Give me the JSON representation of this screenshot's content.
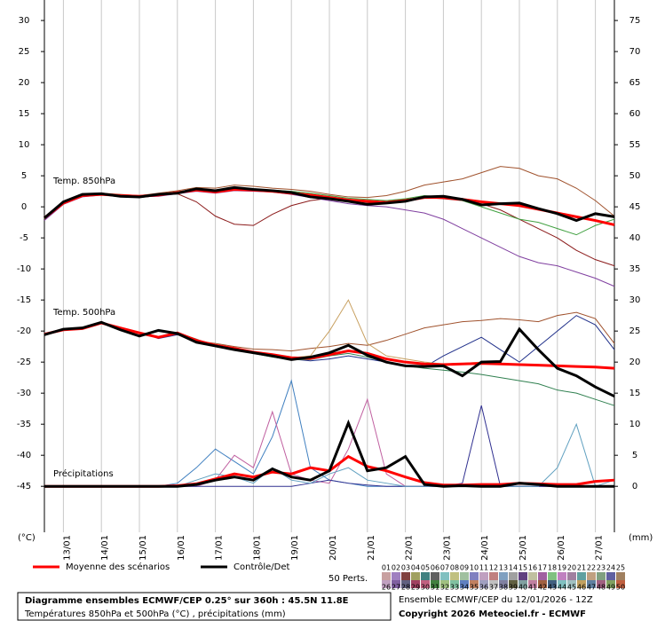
{
  "chart_data": {
    "type": "line",
    "annotations": [
      "Temp. 850hPa",
      "Temp. 500hPa",
      "Précipitations"
    ],
    "y_label": "(°C)",
    "y2_label": "(mm)",
    "x": [
      0,
      12,
      24,
      36,
      48,
      60,
      72,
      84,
      96,
      108,
      120,
      132,
      144,
      156,
      168,
      180,
      192,
      204,
      216,
      228,
      240,
      252,
      264,
      276,
      288,
      300,
      312,
      324,
      336,
      348,
      360
    ],
    "xlim": [
      0,
      360
    ],
    "xticks": [
      {
        "value": 12,
        "label": "13/01"
      },
      {
        "value": 36,
        "label": "14/01"
      },
      {
        "value": 60,
        "label": "15/01"
      },
      {
        "value": 84,
        "label": "16/01"
      },
      {
        "value": 108,
        "label": "17/01"
      },
      {
        "value": 132,
        "label": "18/01"
      },
      {
        "value": 156,
        "label": "19/01"
      },
      {
        "value": 180,
        "label": "20/01"
      },
      {
        "value": 204,
        "label": "21/01"
      },
      {
        "value": 228,
        "label": "22/01"
      },
      {
        "value": 252,
        "label": "23/01"
      },
      {
        "value": 276,
        "label": "24/01"
      },
      {
        "value": 300,
        "label": "25/01"
      },
      {
        "value": 324,
        "label": "26/01"
      },
      {
        "value": 348,
        "label": "27/01"
      }
    ],
    "ylim": [
      -52.4,
      33.3
    ],
    "yticks": [
      -45,
      -40,
      -35,
      -30,
      -25,
      -20,
      -15,
      -10,
      -5,
      0,
      5,
      10,
      15,
      20,
      25,
      30
    ],
    "y2lim": [
      -7.4,
      78.3
    ],
    "y2ticks": [
      0,
      5,
      10,
      15,
      20,
      25,
      30,
      35,
      40,
      45,
      50,
      55,
      60,
      65,
      70,
      75
    ],
    "grid": true,
    "series": [
      {
        "color": "#8b1a1a",
        "values": [
          -2,
          0.5,
          1.7,
          2,
          1.6,
          1.5,
          1.8,
          2.1,
          0.8,
          -1.5,
          -2.8,
          -3.0,
          -1.2,
          0.2,
          1.0,
          1.4,
          0.8,
          0.6,
          1.0,
          1.2,
          1.5,
          1.3,
          1.0,
          0.5,
          -0.5,
          -2.0,
          -3.5,
          -5.0,
          -7.0,
          -8.5,
          -9.5
        ]
      },
      {
        "color": "#a0522d",
        "values": [
          -1.6,
          0.8,
          1.9,
          2.2,
          2.0,
          1.8,
          2.2,
          2.6,
          3.1,
          3.0,
          3.5,
          3.3,
          3.0,
          2.8,
          2.5,
          2.0,
          1.6,
          1.5,
          1.8,
          2.5,
          3.5,
          4.0,
          4.5,
          5.5,
          6.5,
          6.2,
          5.0,
          4.5,
          3.0,
          1.0,
          -1.5
        ]
      },
      {
        "color": "#8040a0",
        "values": [
          -2.2,
          0.4,
          1.6,
          1.9,
          1.7,
          1.6,
          1.7,
          2.1,
          2.5,
          2.2,
          2.6,
          2.5,
          2.4,
          2.0,
          1.5,
          1.0,
          0.5,
          0.2,
          0.0,
          -0.5,
          -1.0,
          -2.0,
          -3.5,
          -5.0,
          -6.5,
          -8.0,
          -9.0,
          -9.5,
          -10.5,
          -11.5,
          -12.8
        ]
      },
      {
        "color": "#40a040",
        "values": [
          -1.9,
          0.6,
          1.8,
          2.0,
          1.9,
          1.8,
          2.0,
          2.4,
          2.8,
          2.5,
          3.0,
          2.9,
          2.7,
          2.5,
          2.2,
          1.8,
          1.4,
          1.2,
          1.0,
          1.3,
          1.8,
          1.6,
          1.0,
          0.0,
          -1.0,
          -2.0,
          -2.5,
          -3.5,
          -4.5,
          -3.0,
          -2.0
        ]
      },
      {
        "color": "#a0522d",
        "values": [
          -20.5,
          -19.7,
          -19.6,
          -18.8,
          -19.6,
          -20.4,
          -21.0,
          -20.5,
          -21.6,
          -22.0,
          -22.5,
          -22.9,
          -23.0,
          -23.2,
          -22.8,
          -22.5,
          -22.0,
          -22.3,
          -21.5,
          -20.5,
          -19.5,
          -19.0,
          -18.5,
          -18.3,
          -18.0,
          -18.2,
          -18.5,
          -17.5,
          -17.0,
          -18.0,
          -22.0
        ]
      },
      {
        "color": "#20308a",
        "values": [
          -20.4,
          -19.9,
          -19.5,
          -18.7,
          -19.4,
          -20.2,
          -21.2,
          -20.6,
          -21.4,
          -22.2,
          -22.9,
          -23.5,
          -23.9,
          -24.5,
          -24.8,
          -24.5,
          -24.0,
          -24.5,
          -25.0,
          -25.5,
          -25.8,
          -24.0,
          -22.5,
          -21.0,
          -23.0,
          -25.0,
          -22.5,
          -20.0,
          -17.5,
          -19.0,
          -23.0
        ]
      },
      {
        "color": "#308050",
        "values": [
          -20.6,
          -19.8,
          -19.7,
          -18.6,
          -19.5,
          -20.4,
          -21.1,
          -20.3,
          -21.3,
          -22.5,
          -23.0,
          -23.6,
          -24.2,
          -24.6,
          -24.6,
          -24.0,
          -23.6,
          -24.2,
          -25.0,
          -25.6,
          -26.0,
          -26.3,
          -26.6,
          -27.0,
          -27.5,
          -28.0,
          -28.5,
          -29.5,
          -30.0,
          -31.0,
          -32.0
        ]
      },
      {
        "color": "#c8a060",
        "values": [
          -20.5,
          -19.8,
          -19.5,
          -18.7,
          -19.6,
          -20.3,
          -21.0,
          -20.4,
          -21.5,
          -22.3,
          -22.8,
          -23.4,
          -23.8,
          -24.3,
          -24.0,
          -20.0,
          -15.0,
          -22.0,
          -24.0,
          -24.5,
          -25.0,
          -25.3,
          -25.2,
          -25.0,
          -25.2,
          -25.4,
          -25.5,
          -25.6,
          -25.7,
          -25.8,
          -26.0
        ]
      },
      {
        "color": "#4080c0",
        "axis": "y2",
        "values": [
          0,
          0,
          0,
          0,
          0,
          0,
          0,
          0.5,
          3.0,
          6.0,
          4.0,
          2.0,
          8.0,
          17.0,
          3.0,
          1.0,
          0.5,
          0,
          0,
          0,
          0,
          0,
          0,
          0,
          0,
          0,
          0,
          0,
          0,
          0,
          0
        ]
      },
      {
        "color": "#c060a0",
        "axis": "y2",
        "values": [
          0,
          0,
          0,
          0,
          0,
          0,
          0,
          0,
          0,
          1.0,
          5.0,
          3.0,
          12.0,
          2.0,
          1.0,
          0.5,
          6.0,
          14.0,
          2.0,
          0,
          0,
          0,
          0,
          0,
          0,
          0,
          0,
          0,
          0,
          0,
          0
        ]
      },
      {
        "color": "#303090",
        "axis": "y2",
        "values": [
          0,
          0,
          0,
          0,
          0,
          0,
          0,
          0,
          0,
          0,
          0,
          0,
          0,
          0,
          0.5,
          1.0,
          0.5,
          0.2,
          0,
          0,
          0,
          0,
          0.5,
          13.0,
          0,
          0,
          0,
          0,
          0,
          0,
          0
        ]
      },
      {
        "color": "#60a0c0",
        "axis": "y2",
        "values": [
          0,
          0,
          0,
          0,
          0,
          0,
          0,
          0,
          1.0,
          2.0,
          1.5,
          0.5,
          3.0,
          1.0,
          0.5,
          2.0,
          3.0,
          1.0,
          0.5,
          0,
          0,
          0,
          0,
          0,
          0,
          0,
          0,
          3.0,
          10.0,
          0,
          1.0
        ]
      },
      {
        "name": "Moyenne des scénarios",
        "color": "#ff0000",
        "width": 3,
        "values": [
          -1.8,
          0.6,
          1.8,
          2.0,
          1.8,
          1.7,
          1.9,
          2.3,
          2.7,
          2.4,
          2.8,
          2.7,
          2.5,
          2.2,
          1.9,
          1.5,
          1.1,
          0.9,
          0.7,
          1.0,
          1.5,
          1.5,
          1.2,
          0.8,
          0.5,
          0.2,
          -0.4,
          -1.0,
          -1.6,
          -2.2,
          -2.9
        ]
      },
      {
        "name": "Contrôle/Det",
        "color": "#000000",
        "width": 3,
        "values": [
          -1.8,
          0.8,
          2.0,
          2.1,
          1.7,
          1.6,
          2.0,
          2.2,
          2.9,
          2.6,
          3.1,
          2.8,
          2.6,
          2.3,
          1.6,
          1.3,
          0.9,
          0.4,
          0.6,
          0.9,
          1.6,
          1.7,
          1.2,
          0.3,
          0.5,
          0.6,
          -0.3,
          -1.1,
          -2.2,
          -1.1,
          -1.6
        ]
      },
      {
        "name": "Moyenne des scénarios",
        "color": "#ff0000",
        "width": 3,
        "values": [
          -20.5,
          -19.8,
          -19.6,
          -18.7,
          -19.5,
          -20.3,
          -21.0,
          -20.3,
          -21.5,
          -22.3,
          -22.8,
          -23.4,
          -23.8,
          -24.3,
          -24.4,
          -23.8,
          -23.2,
          -23.6,
          -24.5,
          -25.0,
          -25.3,
          -25.4,
          -25.3,
          -25.2,
          -25.3,
          -25.4,
          -25.5,
          -25.6,
          -25.7,
          -25.8,
          -26.0
        ]
      },
      {
        "name": "Contrôle/Det",
        "color": "#000000",
        "width": 3,
        "values": [
          -20.6,
          -19.7,
          -19.5,
          -18.6,
          -19.8,
          -20.8,
          -19.9,
          -20.4,
          -21.8,
          -22.4,
          -23.0,
          -23.5,
          -24.0,
          -24.6,
          -24.2,
          -23.5,
          -22.3,
          -23.9,
          -25.0,
          -25.6,
          -25.7,
          -25.6,
          -27.2,
          -25.0,
          -24.9,
          -19.7,
          -23.0,
          -26.0,
          -27.2,
          -29.0,
          -30.5
        ]
      },
      {
        "name": "Moyenne des scénarios",
        "color": "#ff0000",
        "width": 3,
        "axis": "y2",
        "values": [
          0,
          0,
          0,
          0,
          0,
          0,
          0,
          0.1,
          0.4,
          1.2,
          2.0,
          1.5,
          2.3,
          2.0,
          3.0,
          2.5,
          4.8,
          3.2,
          2.5,
          1.5,
          0.6,
          0.2,
          0.2,
          0.3,
          0.3,
          0.5,
          0.4,
          0.3,
          0.3,
          0.8,
          1.0
        ]
      },
      {
        "name": "Contrôle/Det",
        "color": "#000000",
        "width": 3,
        "axis": "y2",
        "values": [
          0,
          0,
          0,
          0,
          0,
          0,
          0,
          0,
          0.3,
          1.0,
          1.5,
          1.0,
          2.8,
          1.5,
          1.0,
          2.5,
          10.2,
          2.5,
          3.0,
          4.8,
          0.3,
          0,
          0.1,
          0,
          0,
          0.5,
          0.3,
          0,
          0,
          0,
          0
        ]
      }
    ]
  },
  "ensemble_legend": {
    "label": "50 Perts.",
    "members": [
      {
        "label": "01",
        "color": "#c8a0a0"
      },
      {
        "label": "02",
        "color": "#a080c0"
      },
      {
        "label": "03",
        "color": "#804040"
      },
      {
        "label": "04",
        "color": "#a0a060"
      },
      {
        "label": "05",
        "color": "#408080"
      },
      {
        "label": "06",
        "color": "#606060"
      },
      {
        "label": "07",
        "color": "#80c0c0"
      },
      {
        "label": "08",
        "color": "#c0c080"
      },
      {
        "label": "09",
        "color": "#a0c0a0"
      },
      {
        "label": "10",
        "color": "#8080c0"
      },
      {
        "label": "11",
        "color": "#c0a0c0"
      },
      {
        "label": "12",
        "color": "#c08080"
      },
      {
        "label": "13",
        "color": "#80a0c0"
      },
      {
        "label": "14",
        "color": "#a0a0a0"
      },
      {
        "label": "15",
        "color": "#604080"
      },
      {
        "label": "16",
        "color": "#c0c0a0"
      },
      {
        "label": "17",
        "color": "#a060a0"
      },
      {
        "label": "18",
        "color": "#80c080"
      },
      {
        "label": "19",
        "color": "#c080c0"
      },
      {
        "label": "20",
        "color": "#a080a0"
      },
      {
        "label": "21",
        "color": "#60a0a0"
      },
      {
        "label": "22",
        "color": "#c0a080"
      },
      {
        "label": "23",
        "color": "#80a080"
      },
      {
        "label": "24",
        "color": "#6060a0"
      },
      {
        "label": "25",
        "color": "#a08060"
      },
      {
        "label": "26",
        "color": "#c0a0c0"
      },
      {
        "label": "27",
        "color": "#8060a0"
      },
      {
        "label": "28",
        "color": "#606080"
      },
      {
        "label": "29",
        "color": "#a04060"
      },
      {
        "label": "30",
        "color": "#c06080"
      },
      {
        "label": "31",
        "color": "#408040"
      },
      {
        "label": "32",
        "color": "#a0c080"
      },
      {
        "label": "33",
        "color": "#80c0a0"
      },
      {
        "label": "34",
        "color": "#6080c0"
      },
      {
        "label": "35",
        "color": "#c08060"
      },
      {
        "label": "36",
        "color": "#a0a0c0"
      },
      {
        "label": "37",
        "color": "#c0c0c0"
      },
      {
        "label": "38",
        "color": "#8080a0"
      },
      {
        "label": "39",
        "color": "#606040"
      },
      {
        "label": "40",
        "color": "#80a0a0"
      },
      {
        "label": "41",
        "color": "#c080a0"
      },
      {
        "label": "42",
        "color": "#a06040"
      },
      {
        "label": "43",
        "color": "#406080"
      },
      {
        "label": "44",
        "color": "#80c0c0"
      },
      {
        "label": "45",
        "color": "#a0c0c0"
      },
      {
        "label": "46",
        "color": "#c0a060"
      },
      {
        "label": "47",
        "color": "#6080a0"
      },
      {
        "label": "48",
        "color": "#a06080"
      },
      {
        "label": "49",
        "color": "#80a060"
      },
      {
        "label": "50",
        "color": "#c06040"
      }
    ]
  },
  "footer": {
    "title": "Diagramme ensembles ECMWF/CEP 0.25° sur 360h : 45.5N 11.8E",
    "subtitle": "Températures 850hPa et 500hPa (°C) , précipitations (mm)",
    "run": "Ensemble ECMWF/CEP du 12/01/2026 - 12Z",
    "copyright": "Copyright 2026 Meteociel.fr - ECMWF"
  }
}
